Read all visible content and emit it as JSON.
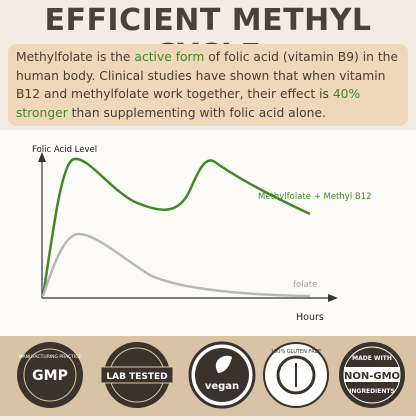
{
  "title": "EFFICIENT METHYL CYCLE",
  "intro": {
    "parts": [
      "Methylfolate is the ",
      "active form",
      " of folic acid (vitamin B9) in the human body. Clinical studies have shown that when vitamin B12 and methylfolate work together, their effect is ",
      "40% stronger",
      " than supplementing with folic acid alone."
    ]
  },
  "graph": {
    "y_label": "Folic Acid Level",
    "x_label": "Hours",
    "curves": [
      "Methylfolate + Methyl B12",
      "folate"
    ]
  },
  "badges": [
    {
      "main": "GMP",
      "ring": "MANUFACTURING PRACTICE"
    },
    {
      "main": "LAB TESTED"
    },
    {
      "main": "vegan"
    },
    {
      "main": "100% GLUTEN FREE"
    },
    {
      "ring": "MADE WITH",
      "main": "NON-GMO",
      "sub": "INGREDIENTS"
    }
  ]
}
